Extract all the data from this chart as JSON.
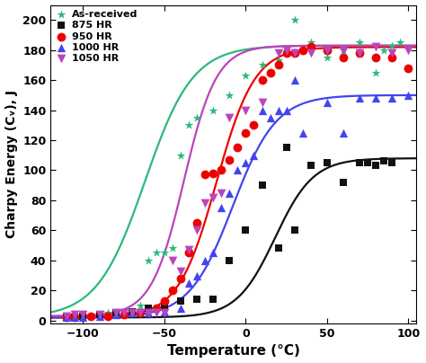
{
  "xlabel": "Temperature (°C)",
  "ylabel": "Charpy Energy (Cᵥ), J",
  "xlim": [
    -120,
    105
  ],
  "ylim": [
    -2,
    210
  ],
  "xticks": [
    -100,
    -50,
    0,
    50,
    100
  ],
  "yticks": [
    0,
    20,
    40,
    60,
    80,
    100,
    120,
    140,
    160,
    180,
    200
  ],
  "series": {
    "as_received": {
      "label": "As-received",
      "color": "#2db87a",
      "marker": "*",
      "marker_size": 55,
      "scatter_x": [
        -110,
        -105,
        -100,
        -95,
        -85,
        -80,
        -70,
        -65,
        -60,
        -55,
        -50,
        -45,
        -40,
        -35,
        -30,
        -20,
        -10,
        0,
        10,
        20,
        30,
        40,
        50,
        60,
        70,
        80,
        85,
        90,
        95
      ],
      "scatter_y": [
        2,
        3,
        2,
        3,
        5,
        5,
        6,
        10,
        40,
        45,
        45,
        48,
        110,
        130,
        135,
        140,
        150,
        163,
        170,
        173,
        200,
        185,
        175,
        180,
        185,
        165,
        180,
        183,
        185
      ],
      "curve_params": {
        "upper": 183,
        "lower": 2,
        "T50": -62,
        "k": 0.068
      }
    },
    "hr875": {
      "label": "875 HR",
      "color": "#111111",
      "marker": "s",
      "marker_size": 40,
      "scatter_x": [
        -110,
        -105,
        -100,
        -90,
        -80,
        -70,
        -60,
        -50,
        -40,
        -30,
        -20,
        -10,
        0,
        10,
        20,
        25,
        30,
        40,
        50,
        60,
        70,
        75,
        80,
        85,
        90
      ],
      "scatter_y": [
        2,
        2,
        3,
        4,
        5,
        6,
        8,
        10,
        13,
        14,
        14,
        40,
        60,
        90,
        48,
        115,
        60,
        103,
        105,
        92,
        105,
        105,
        103,
        106,
        105
      ],
      "curve_params": {
        "upper": 108,
        "lower": 2,
        "T50": 18,
        "k": 0.085
      }
    },
    "hr950": {
      "label": "950 HR",
      "color": "#ee0000",
      "marker": "o",
      "marker_size": 50,
      "scatter_x": [
        -110,
        -105,
        -95,
        -85,
        -75,
        -65,
        -55,
        -50,
        -45,
        -40,
        -35,
        -30,
        -25,
        -20,
        -15,
        -10,
        -5,
        0,
        5,
        10,
        15,
        20,
        25,
        30,
        35,
        40,
        50,
        60,
        70,
        80,
        90,
        100
      ],
      "scatter_y": [
        2,
        2,
        3,
        3,
        4,
        5,
        8,
        13,
        20,
        28,
        45,
        65,
        97,
        98,
        100,
        107,
        115,
        125,
        130,
        160,
        165,
        170,
        178,
        178,
        180,
        182,
        180,
        175,
        178,
        175,
        175,
        168
      ],
      "curve_params": {
        "upper": 182,
        "lower": 2,
        "T50": -18,
        "k": 0.085
      }
    },
    "hr1000": {
      "label": "1000 HR",
      "color": "#4444ee",
      "marker": "^",
      "marker_size": 45,
      "scatter_x": [
        -110,
        -105,
        -100,
        -90,
        -80,
        -70,
        -60,
        -50,
        -40,
        -35,
        -30,
        -25,
        -20,
        -15,
        -10,
        -5,
        0,
        5,
        10,
        15,
        20,
        25,
        30,
        35,
        50,
        60,
        70,
        80,
        90,
        100
      ],
      "scatter_y": [
        2,
        2,
        2,
        3,
        4,
        5,
        5,
        6,
        8,
        25,
        30,
        40,
        45,
        75,
        85,
        100,
        105,
        110,
        140,
        135,
        140,
        140,
        160,
        125,
        145,
        125,
        148,
        148,
        148,
        150
      ],
      "curve_params": {
        "upper": 150,
        "lower": 2,
        "T50": -8,
        "k": 0.075
      }
    },
    "hr1050": {
      "label": "1050 HR",
      "color": "#bb44bb",
      "marker": "v",
      "marker_size": 50,
      "scatter_x": [
        -110,
        -105,
        -100,
        -90,
        -80,
        -75,
        -70,
        -65,
        -60,
        -55,
        -50,
        -45,
        -40,
        -35,
        -30,
        -25,
        -20,
        -15,
        -10,
        0,
        10,
        20,
        25,
        30,
        40,
        50,
        60,
        70,
        80,
        90,
        100
      ],
      "scatter_y": [
        3,
        4,
        4,
        4,
        5,
        5,
        5,
        5,
        5,
        5,
        5,
        40,
        33,
        47,
        60,
        78,
        82,
        85,
        135,
        140,
        145,
        178,
        180,
        178,
        178,
        180,
        180,
        178,
        182,
        178,
        180
      ],
      "curve_params": {
        "upper": 183,
        "lower": 3,
        "T50": -38,
        "k": 0.1
      }
    }
  }
}
